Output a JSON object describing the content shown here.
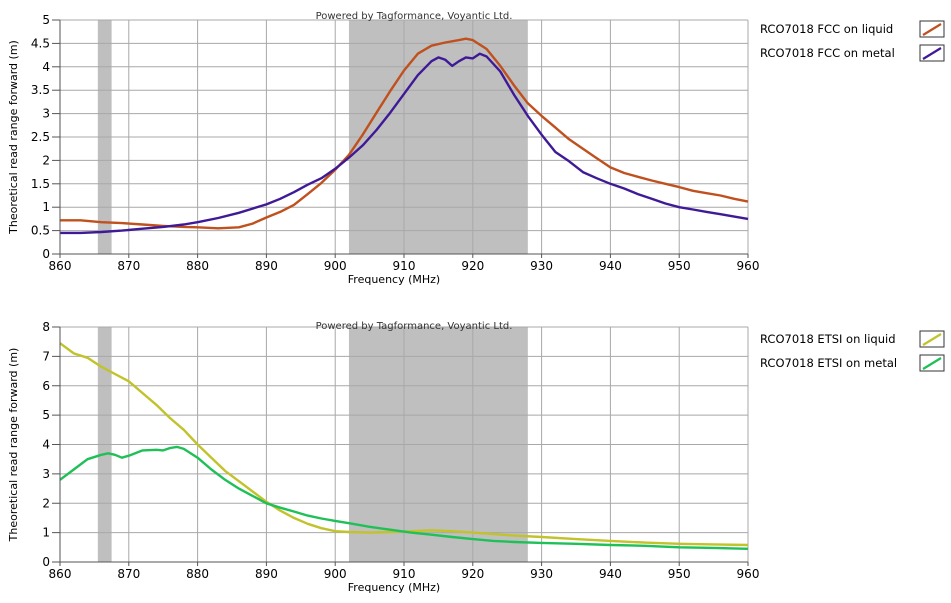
{
  "watermark": "Powered by Tagformance, Voyantic Ltd.",
  "chart_data": [
    {
      "type": "line",
      "xlabel": "Frequency (MHz)",
      "ylabel": "Theoretical read range forward (m)",
      "xlim": [
        860,
        960
      ],
      "ylim": [
        0,
        5
      ],
      "x_ticks": [
        "860",
        "870",
        "880",
        "890",
        "900",
        "910",
        "920",
        "930",
        "940",
        "950",
        "960"
      ],
      "y_ticks": [
        "0",
        "0.5",
        "1",
        "1.5",
        "2",
        "2.5",
        "3",
        "3.5",
        "4",
        "4.5",
        "5"
      ],
      "grid": true,
      "legend_position": "right",
      "shaded_bands": [
        [
          865.5,
          867.5
        ],
        [
          902,
          928
        ]
      ],
      "series": [
        {
          "name": "RCO7018 FCC  on liquid",
          "color": "#c0501e",
          "points": [
            [
              860,
              0.72
            ],
            [
              863,
              0.72
            ],
            [
              866,
              0.68
            ],
            [
              869,
              0.66
            ],
            [
              872,
              0.63
            ],
            [
              875,
              0.6
            ],
            [
              878,
              0.58
            ],
            [
              880,
              0.57
            ],
            [
              883,
              0.55
            ],
            [
              886,
              0.57
            ],
            [
              888,
              0.65
            ],
            [
              890,
              0.78
            ],
            [
              892,
              0.9
            ],
            [
              894,
              1.05
            ],
            [
              896,
              1.28
            ],
            [
              898,
              1.52
            ],
            [
              900,
              1.8
            ],
            [
              902,
              2.12
            ],
            [
              904,
              2.55
            ],
            [
              906,
              3.02
            ],
            [
              908,
              3.48
            ],
            [
              910,
              3.92
            ],
            [
              912,
              4.28
            ],
            [
              914,
              4.45
            ],
            [
              916,
              4.52
            ],
            [
              918,
              4.57
            ],
            [
              919,
              4.6
            ],
            [
              920,
              4.57
            ],
            [
              922,
              4.38
            ],
            [
              924,
              4.02
            ],
            [
              926,
              3.6
            ],
            [
              928,
              3.22
            ],
            [
              930,
              2.95
            ],
            [
              932,
              2.7
            ],
            [
              934,
              2.45
            ],
            [
              936,
              2.25
            ],
            [
              938,
              2.05
            ],
            [
              940,
              1.85
            ],
            [
              942,
              1.73
            ],
            [
              944,
              1.65
            ],
            [
              946,
              1.57
            ],
            [
              948,
              1.5
            ],
            [
              950,
              1.43
            ],
            [
              952,
              1.35
            ],
            [
              954,
              1.3
            ],
            [
              956,
              1.25
            ],
            [
              958,
              1.18
            ],
            [
              960,
              1.12
            ]
          ]
        },
        {
          "name": "RCO7018 FCC  on metal",
          "color": "#3f1a96",
          "points": [
            [
              860,
              0.45
            ],
            [
              863,
              0.45
            ],
            [
              866,
              0.47
            ],
            [
              869,
              0.5
            ],
            [
              872,
              0.54
            ],
            [
              875,
              0.58
            ],
            [
              878,
              0.63
            ],
            [
              880,
              0.68
            ],
            [
              883,
              0.77
            ],
            [
              886,
              0.88
            ],
            [
              888,
              0.97
            ],
            [
              890,
              1.06
            ],
            [
              892,
              1.18
            ],
            [
              894,
              1.32
            ],
            [
              896,
              1.48
            ],
            [
              898,
              1.62
            ],
            [
              900,
              1.82
            ],
            [
              902,
              2.06
            ],
            [
              904,
              2.32
            ],
            [
              906,
              2.65
            ],
            [
              908,
              3.02
            ],
            [
              910,
              3.42
            ],
            [
              912,
              3.82
            ],
            [
              914,
              4.12
            ],
            [
              915,
              4.2
            ],
            [
              916,
              4.15
            ],
            [
              917,
              4.02
            ],
            [
              918,
              4.12
            ],
            [
              919,
              4.2
            ],
            [
              920,
              4.18
            ],
            [
              921,
              4.28
            ],
            [
              922,
              4.22
            ],
            [
              924,
              3.9
            ],
            [
              926,
              3.4
            ],
            [
              928,
              2.95
            ],
            [
              930,
              2.55
            ],
            [
              932,
              2.18
            ],
            [
              934,
              1.98
            ],
            [
              936,
              1.75
            ],
            [
              938,
              1.62
            ],
            [
              940,
              1.5
            ],
            [
              942,
              1.4
            ],
            [
              944,
              1.28
            ],
            [
              946,
              1.18
            ],
            [
              948,
              1.08
            ],
            [
              950,
              1.0
            ],
            [
              952,
              0.95
            ],
            [
              954,
              0.9
            ],
            [
              956,
              0.85
            ],
            [
              958,
              0.8
            ],
            [
              960,
              0.75
            ]
          ]
        }
      ]
    },
    {
      "type": "line",
      "xlabel": "Frequency (MHz)",
      "ylabel": "Theoretical read range forward (m)",
      "xlim": [
        860,
        960
      ],
      "ylim": [
        0,
        8
      ],
      "x_ticks": [
        "860",
        "870",
        "880",
        "890",
        "900",
        "910",
        "920",
        "930",
        "940",
        "950",
        "960"
      ],
      "y_ticks": [
        "0",
        "1",
        "2",
        "3",
        "4",
        "5",
        "6",
        "7",
        "8"
      ],
      "grid": true,
      "legend_position": "right",
      "shaded_bands": [
        [
          865.5,
          867.5
        ],
        [
          902,
          928
        ]
      ],
      "series": [
        {
          "name": "RCO7018 ETSI on liquid",
          "color": "#c2c22a",
          "points": [
            [
              860,
              7.45
            ],
            [
              862,
              7.1
            ],
            [
              864,
              6.95
            ],
            [
              866,
              6.65
            ],
            [
              868,
              6.4
            ],
            [
              870,
              6.15
            ],
            [
              872,
              5.75
            ],
            [
              874,
              5.35
            ],
            [
              876,
              4.9
            ],
            [
              878,
              4.5
            ],
            [
              880,
              4.0
            ],
            [
              882,
              3.55
            ],
            [
              884,
              3.1
            ],
            [
              886,
              2.75
            ],
            [
              888,
              2.4
            ],
            [
              890,
              2.05
            ],
            [
              892,
              1.75
            ],
            [
              894,
              1.5
            ],
            [
              896,
              1.3
            ],
            [
              898,
              1.15
            ],
            [
              900,
              1.05
            ],
            [
              902,
              1.02
            ],
            [
              905,
              1.0
            ],
            [
              908,
              1.02
            ],
            [
              911,
              1.05
            ],
            [
              914,
              1.08
            ],
            [
              917,
              1.05
            ],
            [
              920,
              1.0
            ],
            [
              923,
              0.95
            ],
            [
              926,
              0.9
            ],
            [
              930,
              0.85
            ],
            [
              935,
              0.78
            ],
            [
              940,
              0.72
            ],
            [
              945,
              0.66
            ],
            [
              950,
              0.62
            ],
            [
              955,
              0.6
            ],
            [
              960,
              0.58
            ]
          ]
        },
        {
          "name": "RCO7018 ETSI on metal",
          "color": "#1fc057",
          "points": [
            [
              860,
              2.8
            ],
            [
              862,
              3.15
            ],
            [
              864,
              3.5
            ],
            [
              866,
              3.65
            ],
            [
              867,
              3.7
            ],
            [
              868,
              3.65
            ],
            [
              869,
              3.55
            ],
            [
              870,
              3.62
            ],
            [
              872,
              3.8
            ],
            [
              874,
              3.82
            ],
            [
              875,
              3.8
            ],
            [
              876,
              3.88
            ],
            [
              877,
              3.92
            ],
            [
              878,
              3.85
            ],
            [
              880,
              3.55
            ],
            [
              882,
              3.15
            ],
            [
              884,
              2.8
            ],
            [
              886,
              2.5
            ],
            [
              888,
              2.25
            ],
            [
              890,
              2.0
            ],
            [
              892,
              1.85
            ],
            [
              894,
              1.72
            ],
            [
              896,
              1.58
            ],
            [
              898,
              1.48
            ],
            [
              900,
              1.4
            ],
            [
              902,
              1.32
            ],
            [
              905,
              1.2
            ],
            [
              908,
              1.1
            ],
            [
              911,
              1.0
            ],
            [
              914,
              0.93
            ],
            [
              917,
              0.85
            ],
            [
              920,
              0.78
            ],
            [
              923,
              0.72
            ],
            [
              926,
              0.68
            ],
            [
              930,
              0.65
            ],
            [
              935,
              0.62
            ],
            [
              940,
              0.58
            ],
            [
              945,
              0.55
            ],
            [
              950,
              0.5
            ],
            [
              955,
              0.48
            ],
            [
              960,
              0.45
            ]
          ]
        }
      ]
    }
  ]
}
